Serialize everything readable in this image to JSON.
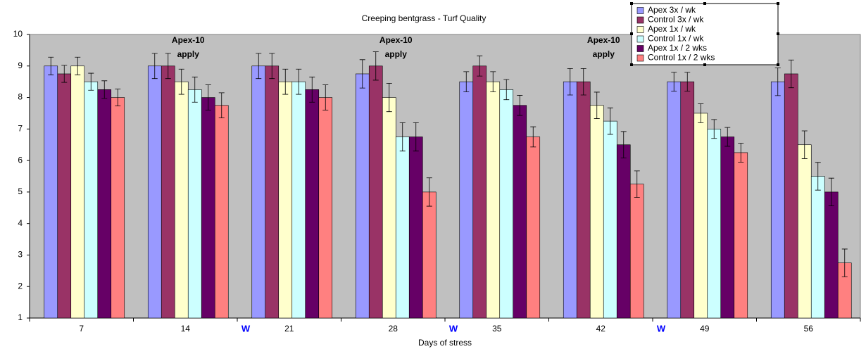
{
  "chart_data": {
    "type": "bar",
    "title": "Creeping bentgrass - Turf Quality",
    "x_label": "Days of stress",
    "categories": [
      "7",
      "14",
      "21",
      "28",
      "35",
      "42",
      "49",
      "56"
    ],
    "ylim": [
      1,
      10
    ],
    "yticks": [
      1,
      2,
      3,
      4,
      5,
      6,
      7,
      8,
      9,
      10
    ],
    "series": [
      {
        "name": "Apex 3x / wk",
        "color": "#9999ff",
        "values": [
          9,
          9,
          9,
          8.75,
          8.5,
          8.5,
          8.5,
          8.5
        ],
        "errors": [
          0.28,
          0.4,
          0.4,
          0.45,
          0.32,
          0.42,
          0.3,
          0.44
        ]
      },
      {
        "name": "Control 3x / wk",
        "color": "#993366",
        "values": [
          8.75,
          9,
          9,
          9,
          9,
          8.5,
          8.5,
          8.75
        ],
        "errors": [
          0.27,
          0.4,
          0.4,
          0.45,
          0.32,
          0.42,
          0.3,
          0.44
        ]
      },
      {
        "name": "Apex 1x / wk",
        "color": "#ffffcc",
        "values": [
          9,
          8.5,
          8.5,
          8,
          8.5,
          7.75,
          7.5,
          6.5
        ],
        "errors": [
          0.28,
          0.4,
          0.4,
          0.45,
          0.32,
          0.42,
          0.3,
          0.44
        ]
      },
      {
        "name": "Control 1x / wk",
        "color": "#ccffff",
        "values": [
          8.5,
          8.25,
          8.5,
          6.75,
          8.25,
          7.25,
          7,
          5.5
        ],
        "errors": [
          0.27,
          0.4,
          0.4,
          0.45,
          0.32,
          0.42,
          0.3,
          0.44
        ]
      },
      {
        "name": "Apex 1x / 2 wks",
        "color": "#660066",
        "values": [
          8.25,
          8,
          8.25,
          6.75,
          7.75,
          6.5,
          6.75,
          5
        ],
        "errors": [
          0.28,
          0.4,
          0.4,
          0.45,
          0.32,
          0.42,
          0.3,
          0.44
        ]
      },
      {
        "name": "Control 1x / 2 wks",
        "color": "#ff8080",
        "values": [
          8,
          7.75,
          8,
          5,
          6.75,
          5.25,
          6.25,
          2.75
        ],
        "errors": [
          0.27,
          0.4,
          0.4,
          0.45,
          0.32,
          0.42,
          0.3,
          0.44
        ]
      }
    ],
    "annotations": [
      [
        "Apex-10",
        "apply"
      ],
      [
        "Apex-10",
        "apply"
      ],
      [
        "Apex-10",
        "apply"
      ]
    ],
    "markers": [
      "W",
      "W",
      "W"
    ],
    "background": "#c0c0c0",
    "error_bars": true
  }
}
